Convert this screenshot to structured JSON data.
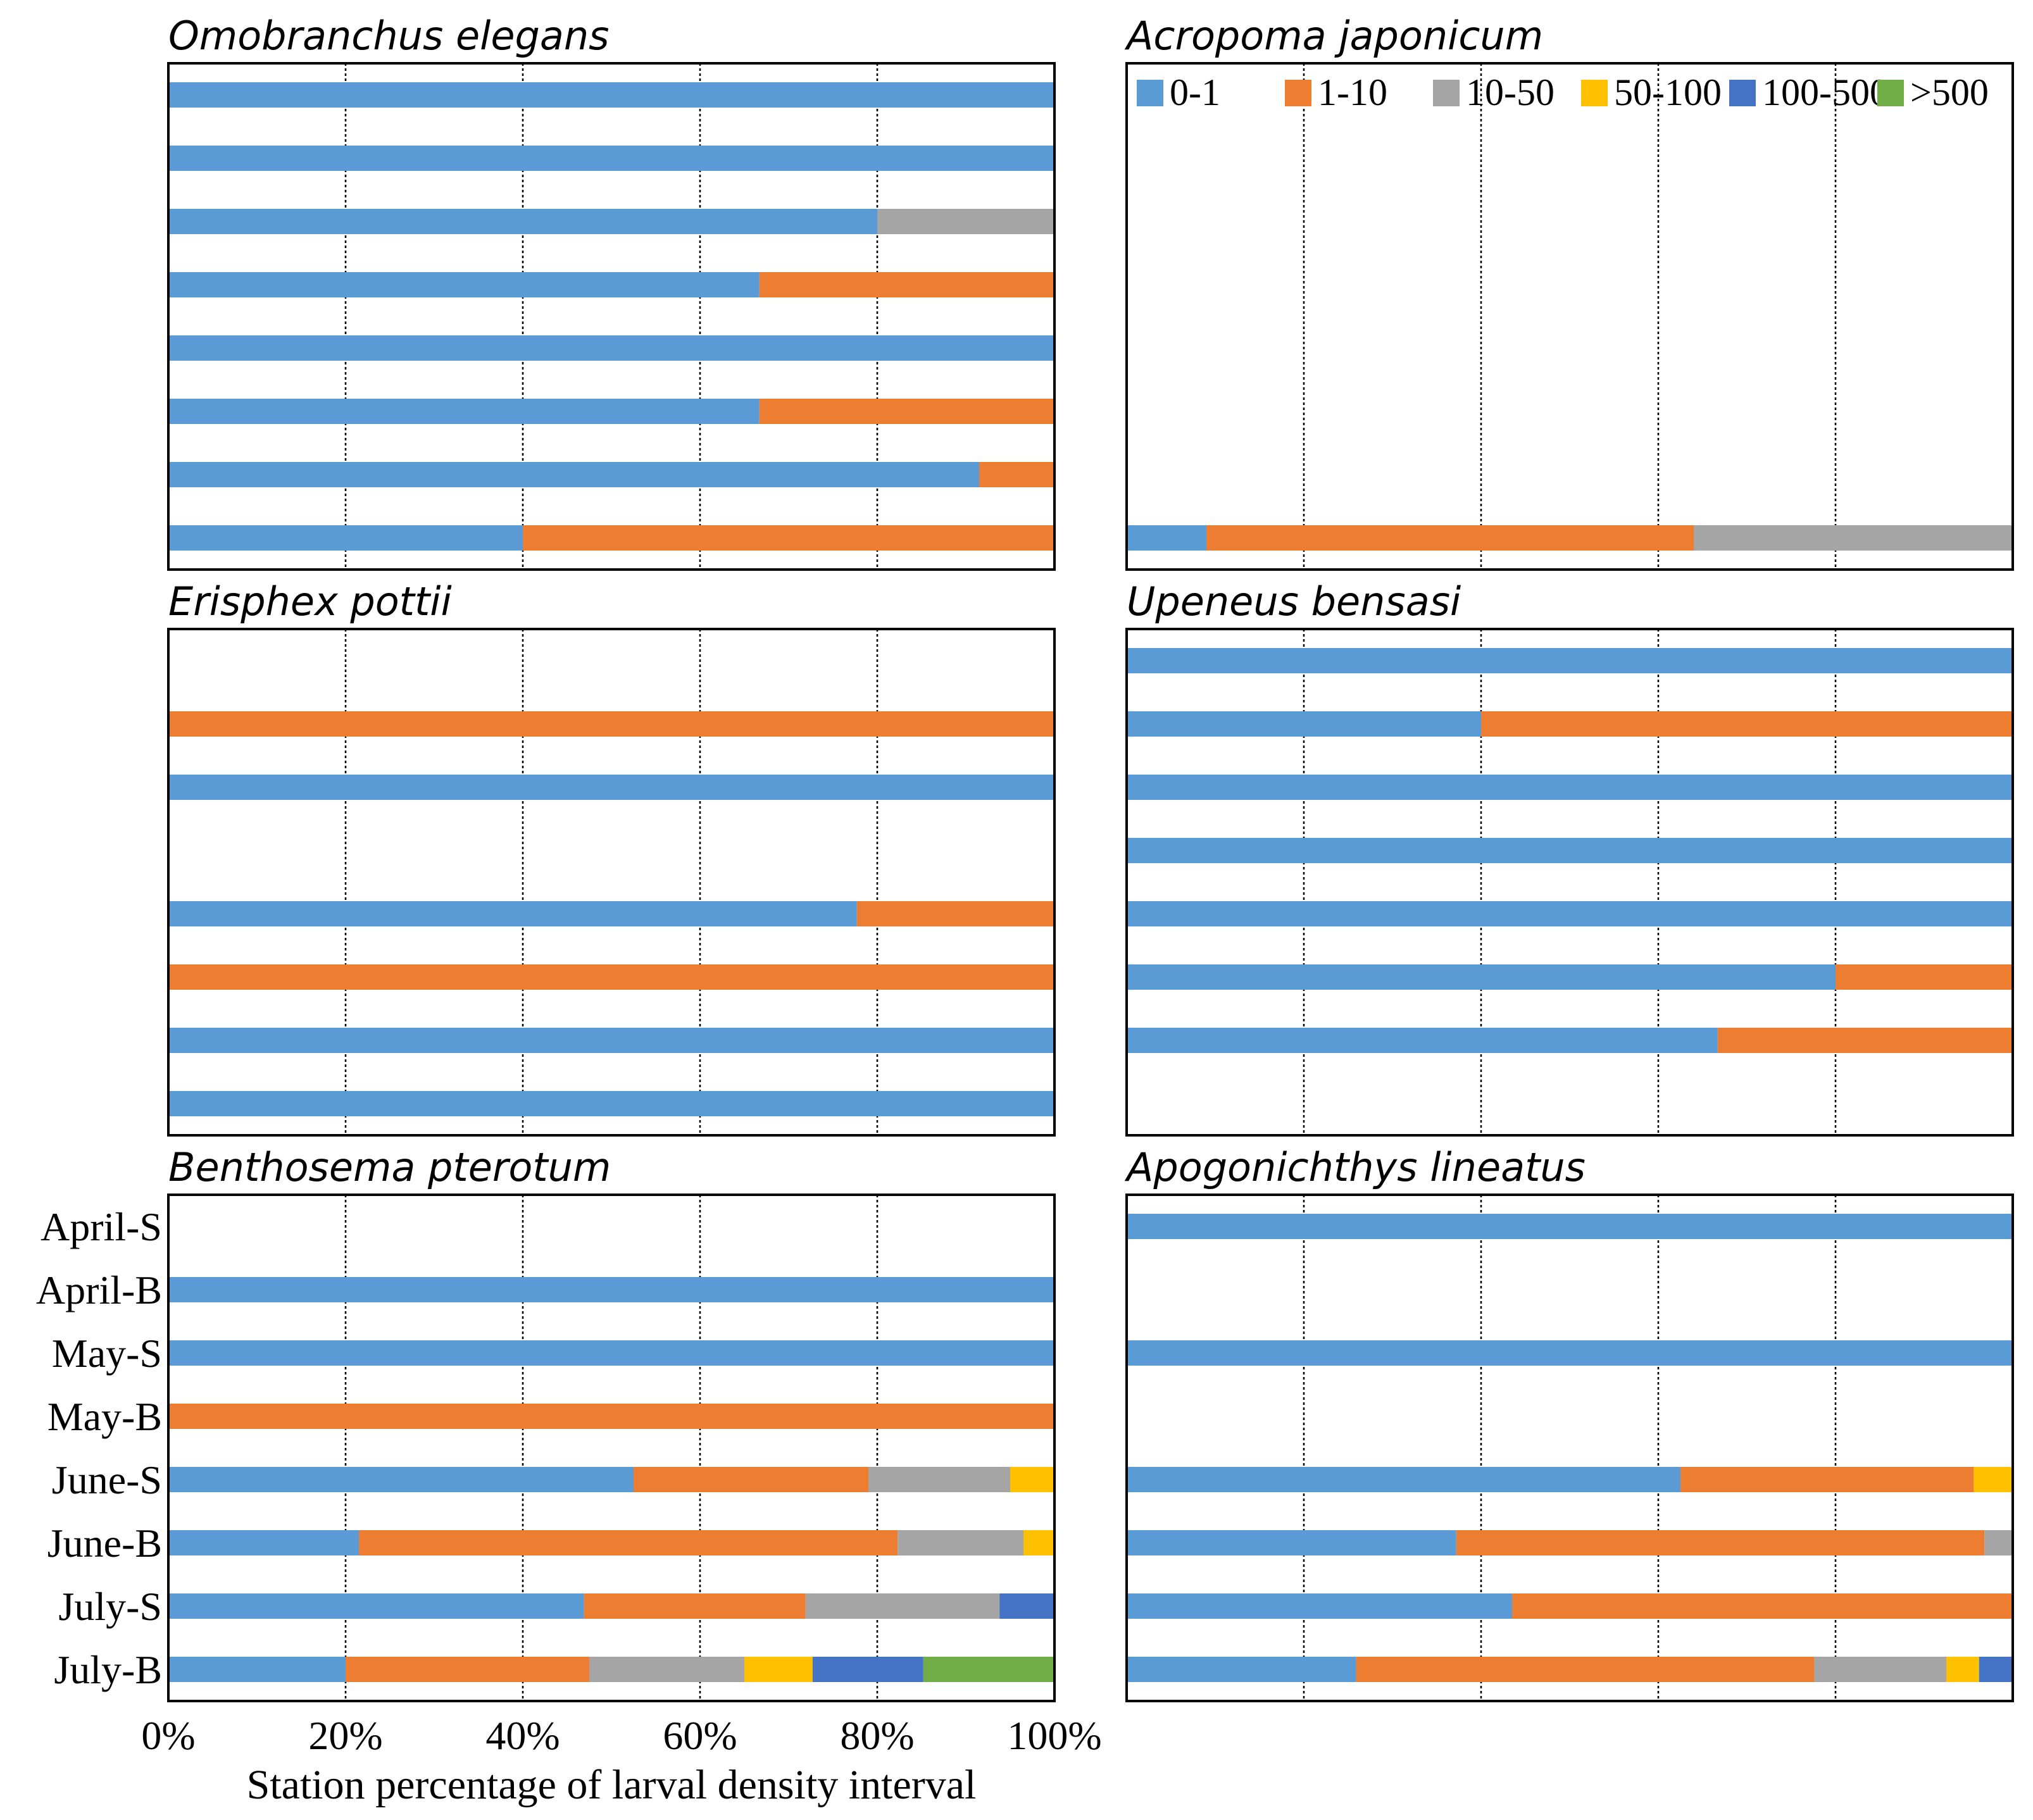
{
  "chart_data": {
    "type": "bar",
    "stacked": true,
    "orientation": "horizontal",
    "xlabel": "Station percentage of larval density interval",
    "xlim": [
      0,
      100
    ],
    "x_ticks": [
      "0%",
      "20%",
      "40%",
      "60%",
      "80%",
      "100%"
    ],
    "categories": [
      "April-S",
      "April-B",
      "May-S",
      "May-B",
      "June-S",
      "June-B",
      "July-S",
      "July-B"
    ],
    "legend": {
      "placement": "top-right",
      "entries": [
        {
          "name": "0-1",
          "color": "#5B9BD5"
        },
        {
          "name": "1-10",
          "color": "#ED7D31"
        },
        {
          "name": "10-50",
          "color": "#A5A5A5"
        },
        {
          "name": "50-100",
          "color": "#FFC000"
        },
        {
          "name": "100-500",
          "color": "#4472C4"
        },
        {
          "name": ">500",
          "color": "#70AD47"
        }
      ]
    },
    "panels": [
      {
        "title": "Omobranchus elegans",
        "rows": [
          [
            100,
            0,
            0,
            0,
            0,
            0
          ],
          [
            100,
            0,
            0,
            0,
            0,
            0
          ],
          [
            80,
            0,
            20,
            0,
            0,
            0
          ],
          [
            66.7,
            33.3,
            0,
            0,
            0,
            0
          ],
          [
            100,
            0,
            0,
            0,
            0,
            0
          ],
          [
            66.7,
            33.3,
            0,
            0,
            0,
            0
          ],
          [
            91.5,
            8.5,
            0,
            0,
            0,
            0
          ],
          [
            40,
            60,
            0,
            0,
            0,
            0
          ]
        ]
      },
      {
        "title": "Acropoma japonicum",
        "rows": [
          [
            0,
            0,
            0,
            0,
            0,
            0
          ],
          [
            0,
            0,
            0,
            0,
            0,
            0
          ],
          [
            0,
            0,
            0,
            0,
            0,
            0
          ],
          [
            0,
            0,
            0,
            0,
            0,
            0
          ],
          [
            0,
            0,
            0,
            0,
            0,
            0
          ],
          [
            0,
            0,
            0,
            0,
            0,
            0
          ],
          [
            0,
            0,
            0,
            0,
            0,
            0
          ],
          [
            9,
            55,
            36,
            0,
            0,
            0
          ]
        ]
      },
      {
        "title": "Erisphex pottii",
        "rows": [
          [
            0,
            0,
            0,
            0,
            0,
            0
          ],
          [
            0,
            100,
            0,
            0,
            0,
            0
          ],
          [
            100,
            0,
            0,
            0,
            0,
            0
          ],
          [
            0,
            0,
            0,
            0,
            0,
            0
          ],
          [
            77.7,
            22.3,
            0,
            0,
            0,
            0
          ],
          [
            0,
            100,
            0,
            0,
            0,
            0
          ],
          [
            100,
            0,
            0,
            0,
            0,
            0
          ],
          [
            100,
            0,
            0,
            0,
            0,
            0
          ]
        ]
      },
      {
        "title": "Upeneus bensasi",
        "rows": [
          [
            100,
            0,
            0,
            0,
            0,
            0
          ],
          [
            40,
            60,
            0,
            0,
            0,
            0
          ],
          [
            100,
            0,
            0,
            0,
            0,
            0
          ],
          [
            100,
            0,
            0,
            0,
            0,
            0
          ],
          [
            100,
            0,
            0,
            0,
            0,
            0
          ],
          [
            80,
            20,
            0,
            0,
            0,
            0
          ],
          [
            66.7,
            33.3,
            0,
            0,
            0,
            0
          ],
          [
            0,
            0,
            0,
            0,
            0,
            0
          ]
        ]
      },
      {
        "title": "Benthosema pterotum",
        "rows": [
          [
            0,
            0,
            0,
            0,
            0,
            0
          ],
          [
            100,
            0,
            0,
            0,
            0,
            0
          ],
          [
            100,
            0,
            0,
            0,
            0,
            0
          ],
          [
            0,
            100,
            0,
            0,
            0,
            0
          ],
          [
            52.5,
            26.5,
            16,
            5,
            0,
            0
          ],
          [
            21.5,
            60.8,
            14.2,
            3.5,
            0,
            0
          ],
          [
            46.9,
            25,
            21.9,
            0,
            6.2,
            0
          ],
          [
            20,
            27.5,
            17.5,
            7.7,
            12.5,
            14.8
          ]
        ]
      },
      {
        "title": "Apogonichthys lineatus",
        "rows": [
          [
            100,
            0,
            0,
            0,
            0,
            0
          ],
          [
            0,
            0,
            0,
            0,
            0,
            0
          ],
          [
            100,
            0,
            0,
            0,
            0,
            0
          ],
          [
            0,
            0,
            0,
            0,
            0,
            0
          ],
          [
            62.5,
            33.1,
            0,
            4.4,
            0,
            0
          ],
          [
            37.2,
            59.6,
            3.2,
            0,
            0,
            0
          ],
          [
            43.5,
            56.5,
            0,
            0,
            0,
            0
          ],
          [
            25.9,
            51.7,
            14.9,
            3.7,
            3.8,
            0
          ]
        ]
      }
    ]
  }
}
